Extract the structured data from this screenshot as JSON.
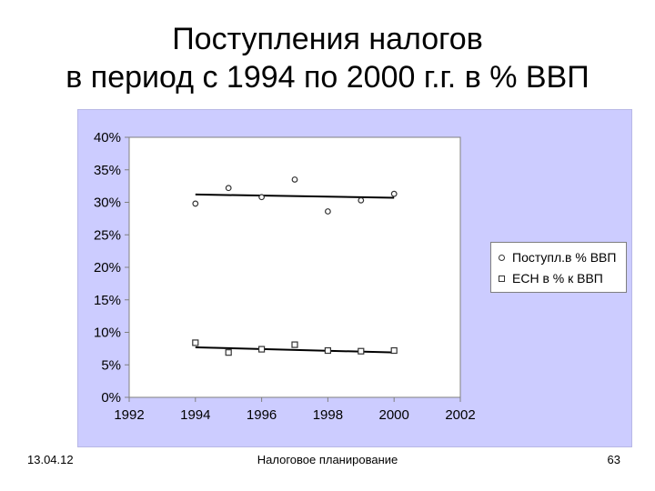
{
  "slide": {
    "title_line1": "Поступления налогов",
    "title_line2": "в период с 1994 по 2000 г.г.  в % ВВП"
  },
  "footer": {
    "date": "13.04.12",
    "center": "Налоговое планирование",
    "page": "63"
  },
  "colors": {
    "plot_background": "#ffffff",
    "chart_background": "#ccccff",
    "series_marker": "#333333",
    "trendline": "#000000",
    "grid": "#7f7f7f"
  },
  "chart_data": {
    "type": "scatter",
    "title": "",
    "xlabel": "",
    "ylabel": "",
    "xlim": [
      1992,
      2002
    ],
    "ylim": [
      0,
      40
    ],
    "x_ticks": [
      "1992",
      "1994",
      "1996",
      "1998",
      "2000",
      "2002"
    ],
    "x_tick_values": [
      1992,
      1994,
      1996,
      1998,
      2000,
      2002
    ],
    "y_ticks": [
      "0%",
      "5%",
      "10%",
      "15%",
      "20%",
      "25%",
      "30%",
      "35%",
      "40%"
    ],
    "y_tick_values": [
      0,
      5,
      10,
      15,
      20,
      25,
      30,
      35,
      40
    ],
    "grid": false,
    "legend_position": "right",
    "series": [
      {
        "name": "Поступл.в % ВВП",
        "marker": "circle",
        "x": [
          1994,
          1995,
          1996,
          1997,
          1998,
          1999,
          2000
        ],
        "y": [
          29.8,
          32.2,
          30.8,
          33.5,
          28.6,
          30.3,
          31.3
        ],
        "trendline": [
          31.2,
          30.7
        ]
      },
      {
        "name": "ЕСН в % к ВВП",
        "marker": "square",
        "x": [
          1994,
          1995,
          1996,
          1997,
          1998,
          1999,
          2000
        ],
        "y": [
          8.4,
          6.9,
          7.4,
          8.1,
          7.2,
          7.1,
          7.2
        ],
        "trendline": [
          7.7,
          6.9
        ]
      }
    ]
  }
}
